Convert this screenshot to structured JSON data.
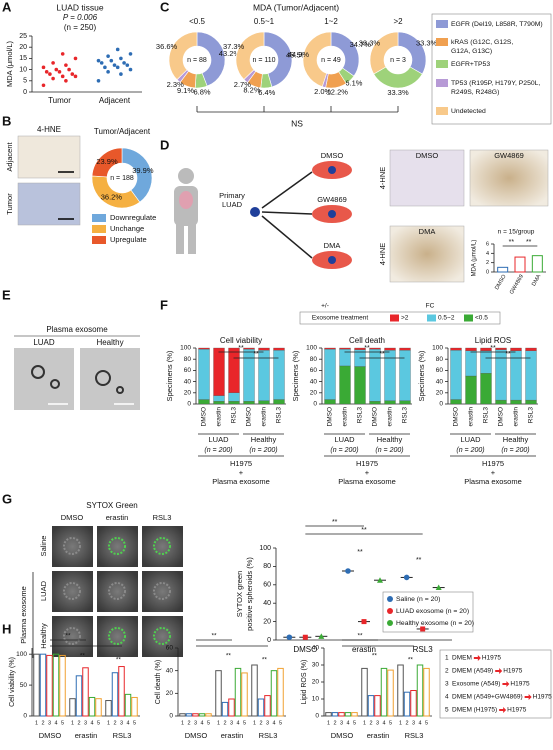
{
  "figure": {
    "A": {
      "label": "A",
      "title": "LUAD tissue",
      "p": "P = 0.006",
      "n": "(n = 250)",
      "ylabel": "MDA (μmol/L)",
      "ylim": [
        0,
        25
      ],
      "yticks": [
        0,
        5,
        10,
        15,
        20,
        25
      ],
      "categories": [
        "Tumor",
        "Adjacent"
      ],
      "colors": [
        "#e8262a",
        "#2e6db4"
      ],
      "points": [
        [
          3,
          5,
          6,
          7,
          7,
          8,
          8,
          9,
          9,
          10,
          10,
          11,
          12,
          13,
          15,
          17
        ],
        [
          5,
          8,
          9,
          10,
          11,
          11,
          12,
          12,
          13,
          13,
          14,
          14,
          15,
          16,
          17,
          19
        ]
      ]
    },
    "B": {
      "label": "B",
      "stain": "4-HNE",
      "rows": [
        "Adjacent",
        "Tumor"
      ],
      "title": "Tumor/Adjacent",
      "n": "n = 188",
      "categories": [
        "Downregulate",
        "Unchange",
        "Upregulate"
      ],
      "colors": [
        "#6fa8dc",
        "#f5b041",
        "#e8582a"
      ],
      "values": [
        39.9,
        36.2,
        23.9
      ],
      "value_labels": [
        "39.9%",
        "36.2%",
        "23.9%"
      ]
    },
    "C": {
      "label": "C",
      "title": "MDA (Tumor/Adjacent)",
      "ns": "NS",
      "legend": [
        [
          "EGFR (Del19, L858R, T790M)"
        ],
        [
          "kRAS (G12C, G12S,",
          "G12A, G13C)"
        ],
        [
          "EGFR+TP53"
        ],
        [
          "TP53 (R195P, H179Y, P250L,",
          "R249S, R248G)"
        ],
        [
          "Undetected"
        ]
      ],
      "colors": [
        "#8e9ad6",
        "#f0a050",
        "#9ed27a",
        "#b79ad6",
        "#f8c98a"
      ],
      "donuts": [
        {
          "name": "<0.5",
          "n": "n = 88",
          "values": [
            43.2,
            9.1,
            6.8,
            2.3,
            36.6
          ],
          "value_labels": [
            "43.2%",
            "9.1%",
            "6.8%",
            "2.3%",
            "36.6%"
          ]
        },
        {
          "name": "0.5~1",
          "n": "n = 110",
          "values": [
            45.5,
            8.2,
            6.4,
            2.7,
            37.3
          ],
          "value_labels": [
            "45.5%",
            "8.2%",
            "6.4%",
            "2.7%",
            "37.3%"
          ]
        },
        {
          "name": "1~2",
          "n": "n = 49",
          "values": [
            34.7,
            12.2,
            6.1,
            2.0,
            44.9
          ],
          "value_labels": [
            "34.7%",
            "12.2%",
            "6.1%",
            "2.0%",
            "44.9%"
          ]
        },
        {
          "name": ">2",
          "n": "n = 3",
          "values": [
            33.3,
            null,
            33.3,
            null,
            33.3
          ],
          "value_labels": [
            "33.3%",
            null,
            "33.3%",
            null,
            "33.3%"
          ]
        }
      ]
    },
    "D": {
      "label": "D",
      "source": [
        "Primary",
        "LUAD"
      ],
      "treatments": [
        "DMSO",
        "GW4869",
        "DMA"
      ],
      "stain": "4-HNE",
      "images": [
        "DMSO",
        "GW4869",
        "DMA"
      ],
      "n": "n = 15/group",
      "ylabel": "MDA (μmol/L)",
      "ylim": [
        0,
        6
      ],
      "yticks": [
        0,
        2,
        4,
        6
      ],
      "categories": [
        "DMSO",
        "GW4869",
        "DMA"
      ],
      "values": [
        1,
        3.2,
        3.5
      ],
      "colors": [
        "#2e6db4",
        "#e8262a",
        "#3aaa35"
      ],
      "sig": "**"
    },
    "E": {
      "label": "E",
      "title": "Plasma exosome",
      "images": [
        "LUAD",
        "Healthy"
      ]
    },
    "F": {
      "label": "F",
      "legend_pm": "+/-",
      "legend_fc": "FC",
      "legend_title": "Exosome treatment",
      "series": [
        {
          "name": ">2",
          "color": "#e8262a"
        },
        {
          "name": "0.5~2",
          "color": "#5bc8e0"
        },
        {
          "name": "<0.5",
          "color": "#3aaa35"
        }
      ],
      "ylabel": "Specimens (%)",
      "ylim": [
        0,
        100
      ],
      "yticks": [
        0,
        20,
        40,
        60,
        80,
        100
      ],
      "categories": [
        "DMSO",
        "erastin",
        "RSL3",
        "DMSO",
        "erastin",
        "RSL3"
      ],
      "groups": [
        "LUAD",
        "Healthy"
      ],
      "group_n": [
        "(n = 200)",
        "(n = 200)"
      ],
      "footer": [
        "H1975",
        "+",
        "Plasma exosome"
      ],
      "sig": "**",
      "charts": [
        {
          "title": "Cell viability",
          "values": [
            [
              2,
              85,
              80,
              2,
              4,
              4
            ],
            [
              90,
              10,
              15,
              93,
              90,
              88
            ],
            [
              8,
              5,
              5,
              5,
              6,
              8
            ]
          ]
        },
        {
          "title": "Cell death",
          "values": [
            [
              2,
              2,
              3,
              2,
              4,
              4
            ],
            [
              90,
              30,
              30,
              93,
              90,
              90
            ],
            [
              8,
              68,
              67,
              5,
              6,
              6
            ]
          ]
        },
        {
          "title": "Lipid ROS",
          "values": [
            [
              4,
              5,
              5,
              3,
              5,
              5
            ],
            [
              88,
              45,
              40,
              90,
              88,
              88
            ],
            [
              8,
              50,
              55,
              7,
              7,
              7
            ]
          ]
        }
      ]
    },
    "G": {
      "label": "G",
      "title": "SYTOX Green",
      "columns": [
        "DMSO",
        "erastin",
        "RSL3"
      ],
      "rows": [
        "Saline",
        "LUAD",
        "Healthy"
      ],
      "row_group": "Plasma exosome",
      "ylabel": [
        "SYTOX green",
        "positive spheroids (%)"
      ],
      "ylim": [
        0,
        100
      ],
      "yticks": [
        0,
        20,
        40,
        60,
        80,
        100
      ],
      "categories": [
        "DMSO",
        "erastin",
        "RSL3"
      ],
      "sig": "**",
      "series": [
        {
          "name": "Saline (n = 20)",
          "color": "#2e6db4",
          "values": [
            3,
            75,
            68
          ]
        },
        {
          "name": "LUAD exosome (n = 20)",
          "color": "#e8262a",
          "values": [
            3,
            20,
            12
          ]
        },
        {
          "name": "Healthy exosome (n = 20)",
          "color": "#3aaa35",
          "values": [
            4,
            65,
            57
          ]
        }
      ]
    },
    "H": {
      "label": "H",
      "categories": [
        "DMSO",
        "erastin",
        "RSL3"
      ],
      "bar_labels": [
        "1",
        "2",
        "3",
        "4",
        "5"
      ],
      "colors": [
        "#555555",
        "#2e6db4",
        "#e8262a",
        "#3aaa35",
        "#f0a030"
      ],
      "sig": "**",
      "charts": [
        {
          "ylabel": "Cell viability (%)",
          "ylim": [
            0,
            110
          ],
          "yticks": [
            0,
            50,
            100
          ],
          "values": [
            [
              100,
              100,
              98,
              100,
              98
            ],
            [
              28,
              65,
              78,
              30,
              28
            ],
            [
              25,
              70,
              80,
              35,
              30
            ]
          ]
        },
        {
          "ylabel": "Cell death (%)",
          "ylim": [
            0,
            60
          ],
          "yticks": [
            0,
            20,
            40,
            60
          ],
          "values": [
            [
              2,
              2,
              2,
              2,
              2
            ],
            [
              40,
              12,
              15,
              42,
              38
            ],
            [
              45,
              15,
              18,
              40,
              42
            ]
          ]
        },
        {
          "ylabel": "Lipid ROS (%)",
          "ylim": [
            0,
            40
          ],
          "yticks": [
            0,
            10,
            20,
            30,
            40
          ],
          "values": [
            [
              2,
              2,
              2,
              2,
              2
            ],
            [
              28,
              12,
              12,
              28,
              27
            ],
            [
              30,
              14,
              15,
              30,
              28
            ]
          ]
        }
      ],
      "legend": [
        {
          "num": "1",
          "from": "DMEM",
          "to": "H1975"
        },
        {
          "num": "2",
          "from": "DMEM (A549)",
          "to": "H1975"
        },
        {
          "num": "3",
          "from": "Exosome (A549)",
          "to": "H1975"
        },
        {
          "num": "4",
          "from": "DMEM (A549+GW4869)",
          "to": "H1975"
        },
        {
          "num": "5",
          "from": "DMEM (H1975)",
          "to": "H1975"
        }
      ]
    }
  }
}
